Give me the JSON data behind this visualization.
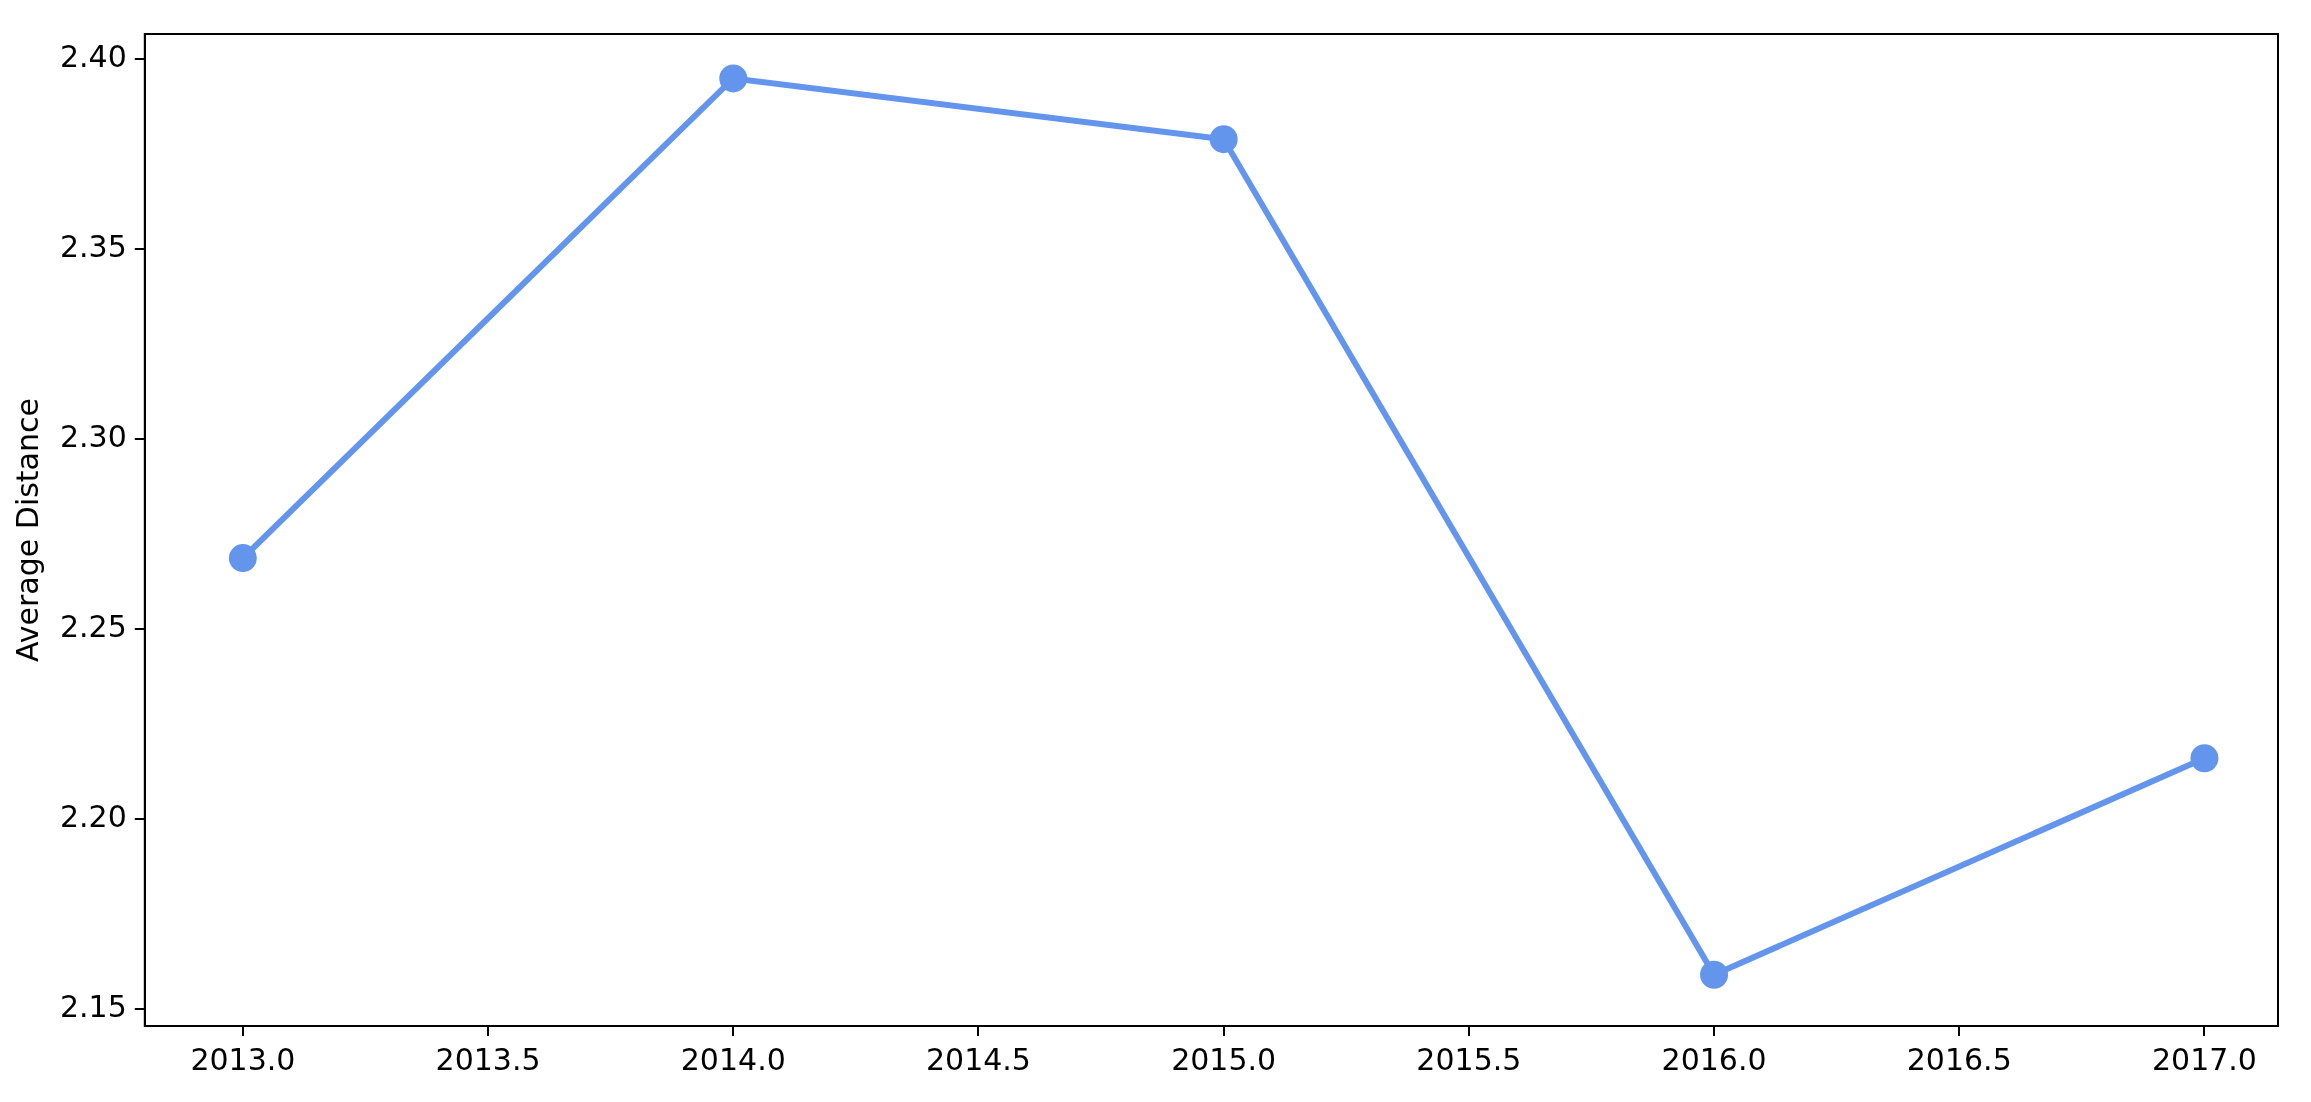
{
  "chart_data": {
    "type": "line",
    "ylabel": "Average Distance",
    "x": [
      2013,
      2014,
      2015,
      2016,
      2017
    ],
    "series": [
      {
        "color": "#6495ed",
        "values": [
          2.2687,
          2.395,
          2.379,
          2.159,
          2.216
        ]
      }
    ],
    "xlim": [
      2012.8,
      2017.15
    ],
    "ylim": [
      2.1455,
      2.4067
    ],
    "xticks": [
      {
        "value": 2013,
        "label": "2013.0"
      },
      {
        "value": 2013.5,
        "label": "2013.5"
      },
      {
        "value": 2014,
        "label": "2014.0"
      },
      {
        "value": 2014.5,
        "label": "2014.5"
      },
      {
        "value": 2015,
        "label": "2015.0"
      },
      {
        "value": 2015.5,
        "label": "2015.5"
      },
      {
        "value": 2016,
        "label": "2016.0"
      },
      {
        "value": 2016.5,
        "label": "2016.5"
      },
      {
        "value": 2017,
        "label": "2017.0"
      }
    ],
    "yticks": [
      {
        "value": 2.15,
        "label": "2.15"
      },
      {
        "value": 2.2,
        "label": "2.20"
      },
      {
        "value": 2.25,
        "label": "2.25"
      },
      {
        "value": 2.3,
        "label": "2.30"
      },
      {
        "value": 2.35,
        "label": "2.35"
      },
      {
        "value": 2.4,
        "label": "2.40"
      }
    ],
    "grid": false,
    "legend": false,
    "marker": "circle",
    "line_style": "solid"
  }
}
